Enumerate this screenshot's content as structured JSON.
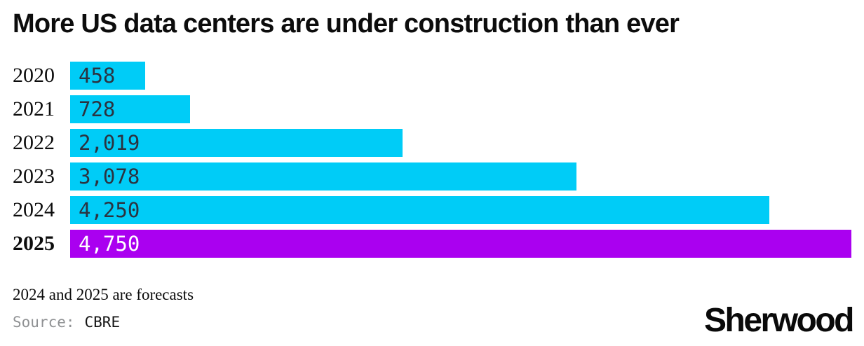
{
  "title": "More US data centers are under construction than ever",
  "chart_data": {
    "type": "bar",
    "orientation": "horizontal",
    "categories": [
      "2020",
      "2021",
      "2022",
      "2023",
      "2024",
      "2025"
    ],
    "values": [
      458,
      728,
      2019,
      3078,
      4250,
      4750
    ],
    "value_labels": [
      "458",
      "728",
      "2,019",
      "3,078",
      "4,250",
      "4,750"
    ],
    "xlim": [
      0,
      4750
    ],
    "grid": false,
    "legend": false,
    "highlight_index": 5,
    "bar_color": "#00ccf7",
    "highlight_bar_color": "#aa00f0",
    "value_text_color": "#2b3340",
    "highlight_value_text_color": "#ffffff"
  },
  "footnote": "2024 and 2025 are forecasts",
  "source": {
    "label": "Source:",
    "value": "CBRE"
  },
  "logo_text": "Sherwood",
  "colors": {
    "background": "#ffffff",
    "title_text": "#0c0c0c",
    "source_label_text": "#8f9193"
  }
}
